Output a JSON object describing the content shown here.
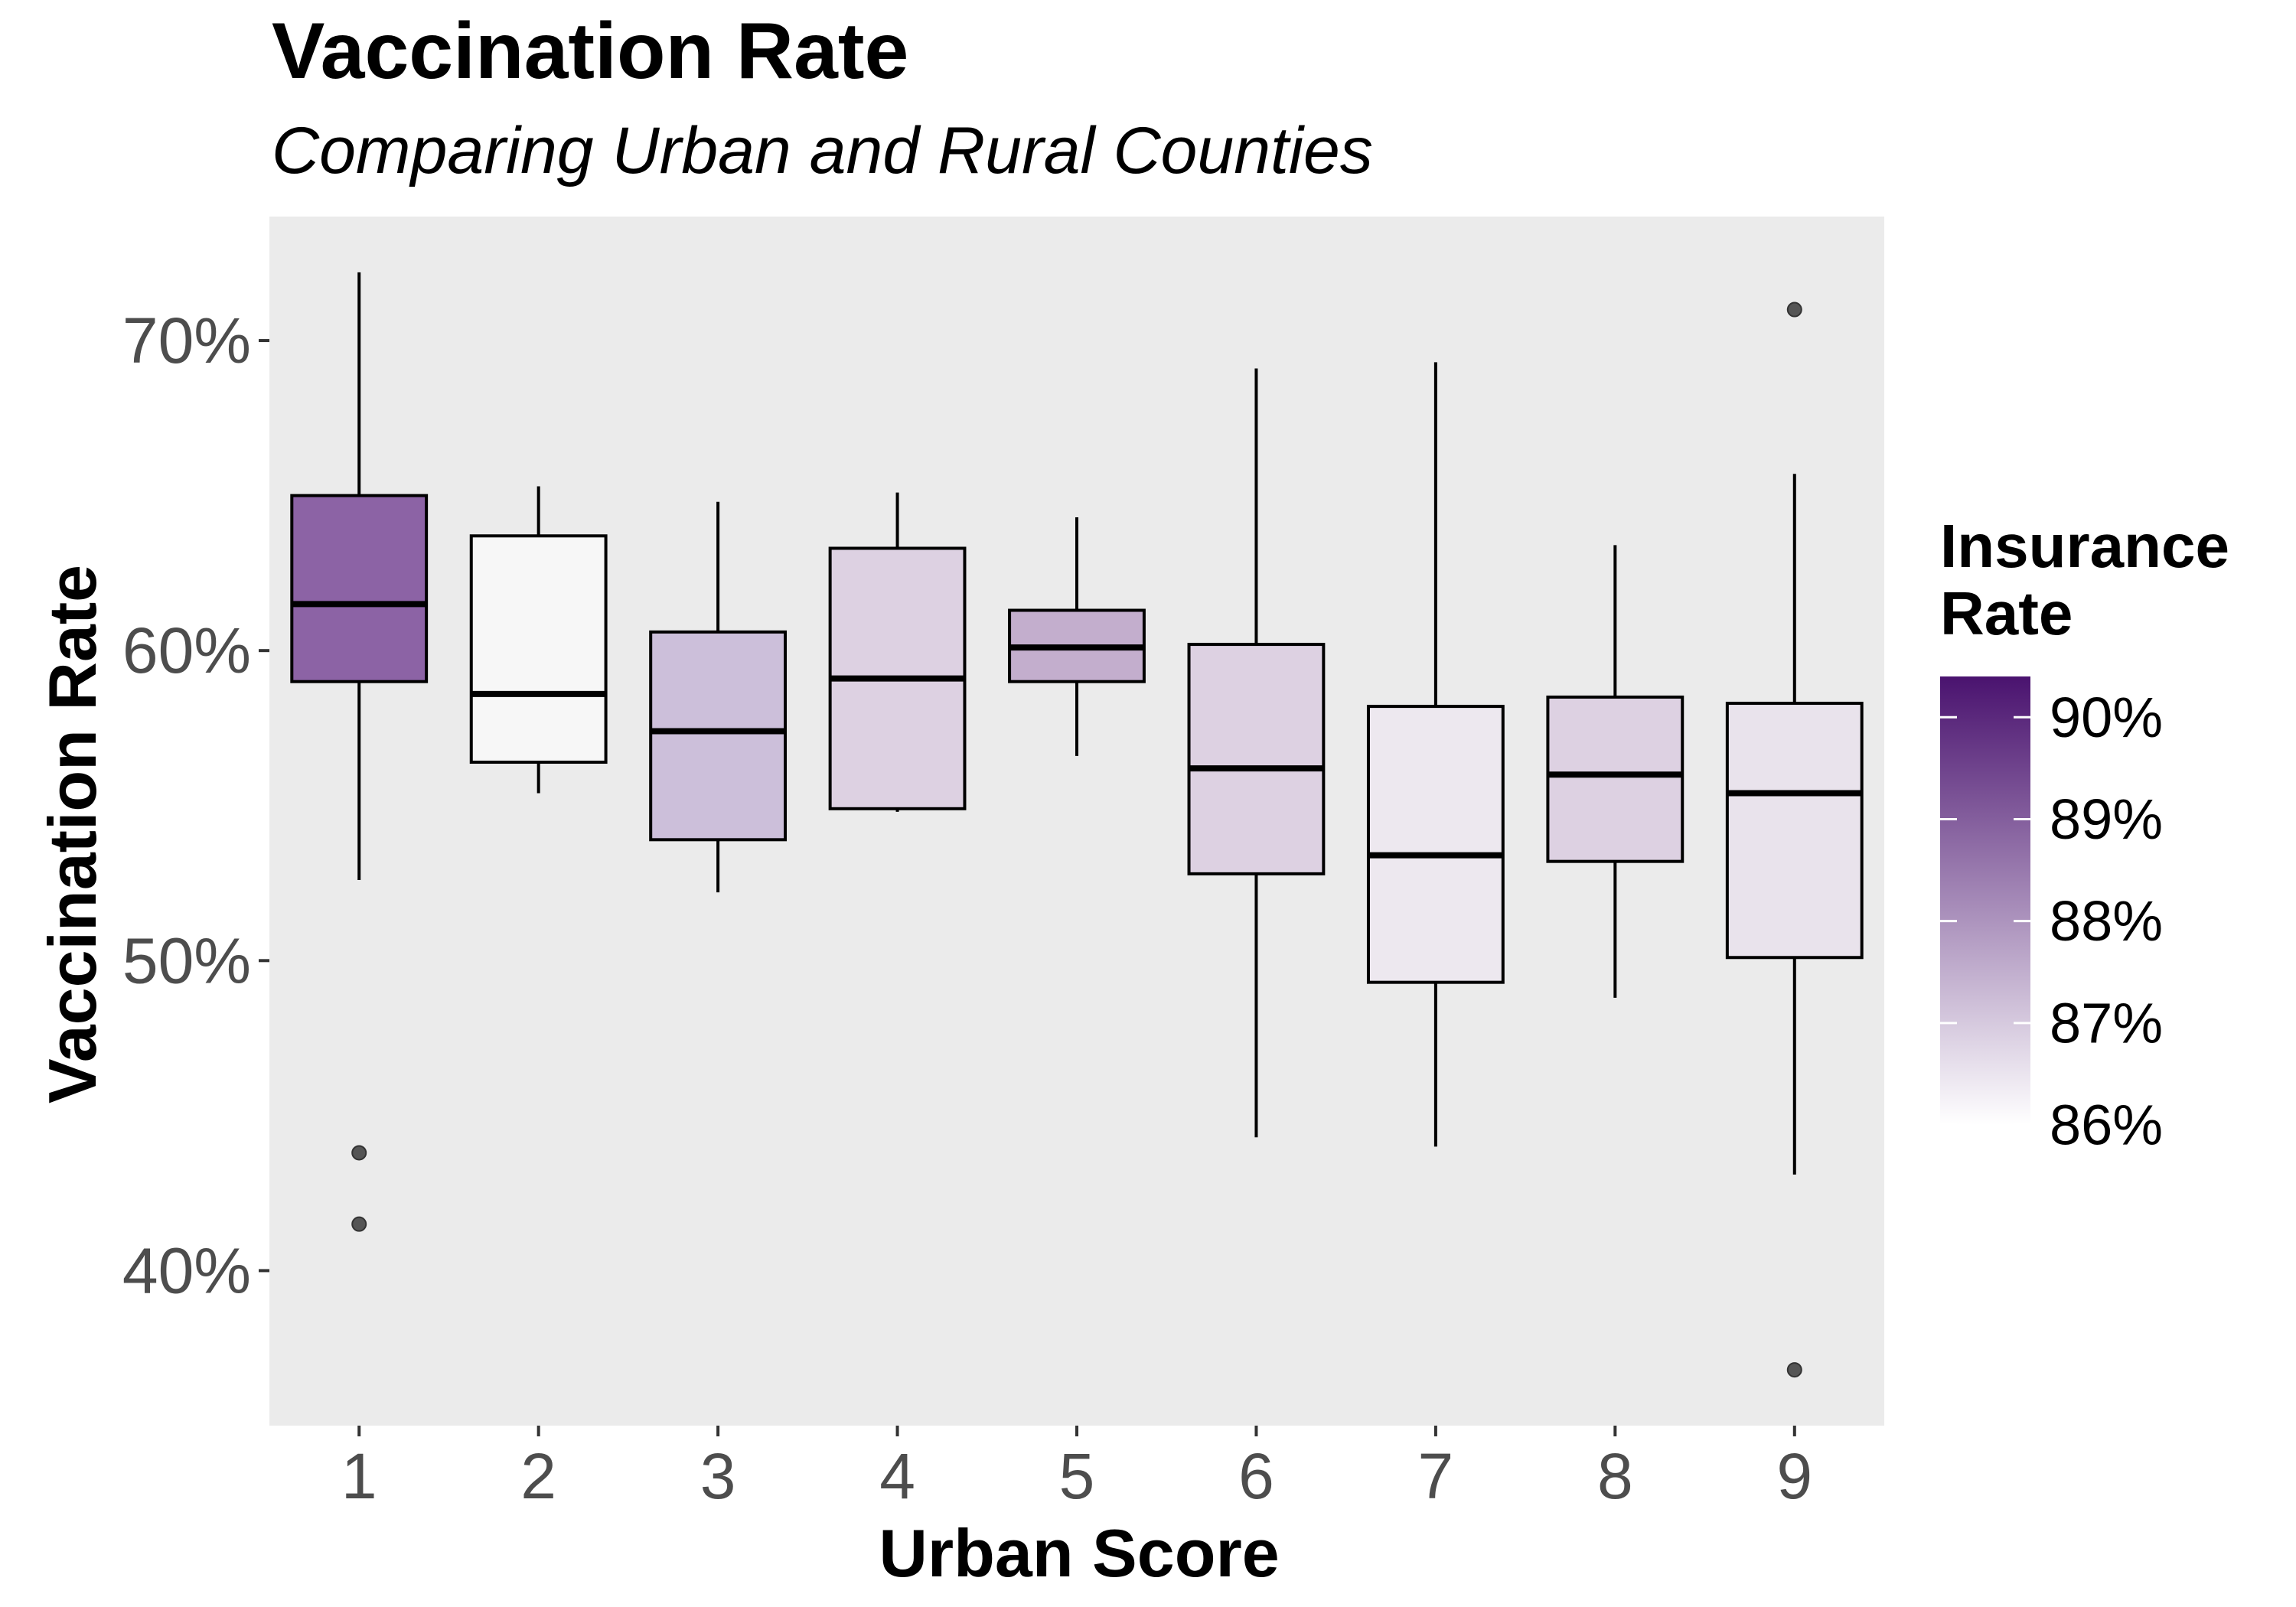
{
  "chart_data": {
    "type": "boxplot",
    "title": "Vaccination Rate",
    "subtitle": "Comparing Urban and Rural Counties",
    "xlabel": "Urban Score",
    "ylabel": "Vaccination Rate",
    "ylim": [
      0.35,
      0.74
    ],
    "grid": false,
    "background": "#ebebeb",
    "y_ticks": [
      {
        "value": 0.4,
        "label": "40%"
      },
      {
        "value": 0.5,
        "label": "50%"
      },
      {
        "value": 0.6,
        "label": "60%"
      },
      {
        "value": 0.7,
        "label": "70%"
      }
    ],
    "categories": [
      "1",
      "2",
      "3",
      "4",
      "5",
      "6",
      "7",
      "8",
      "9"
    ],
    "boxes": [
      {
        "category": "1",
        "whisker_low": 0.526,
        "q1": 0.59,
        "median": 0.615,
        "q3": 0.65,
        "whisker_high": 0.722,
        "outliers": [
          0.438,
          0.415
        ],
        "fill": "#8c63a5"
      },
      {
        "category": "2",
        "whisker_low": 0.554,
        "q1": 0.564,
        "median": 0.586,
        "q3": 0.637,
        "whisker_high": 0.653,
        "outliers": [],
        "fill": "#f7f7f7"
      },
      {
        "category": "3",
        "whisker_low": 0.522,
        "q1": 0.539,
        "median": 0.574,
        "q3": 0.606,
        "whisker_high": 0.648,
        "outliers": [],
        "fill": "#ccbfda"
      },
      {
        "category": "4",
        "whisker_low": 0.548,
        "q1": 0.549,
        "median": 0.591,
        "q3": 0.633,
        "whisker_high": 0.651,
        "outliers": [],
        "fill": "#ddd1e2"
      },
      {
        "category": "5",
        "whisker_low": 0.566,
        "q1": 0.59,
        "median": 0.601,
        "q3": 0.613,
        "whisker_high": 0.643,
        "outliers": [],
        "fill": "#c3aecd"
      },
      {
        "category": "6",
        "whisker_low": 0.443,
        "q1": 0.528,
        "median": 0.562,
        "q3": 0.602,
        "whisker_high": 0.691,
        "outliers": [],
        "fill": "#ddd1e2"
      },
      {
        "category": "7",
        "whisker_low": 0.44,
        "q1": 0.493,
        "median": 0.534,
        "q3": 0.582,
        "whisker_high": 0.693,
        "outliers": [],
        "fill": "#ede8ef"
      },
      {
        "category": "8",
        "whisker_low": 0.488,
        "q1": 0.532,
        "median": 0.56,
        "q3": 0.585,
        "whisker_high": 0.634,
        "outliers": [],
        "fill": "#ddd1e2"
      },
      {
        "category": "9",
        "whisker_low": 0.431,
        "q1": 0.501,
        "median": 0.554,
        "q3": 0.583,
        "whisker_high": 0.657,
        "outliers": [
          0.71,
          0.368
        ],
        "fill": "#e9e3ec"
      }
    ],
    "legend": {
      "title_lines": [
        "Insurance",
        "Rate"
      ],
      "placement": "right",
      "range": [
        0.86,
        0.904
      ],
      "colors": [
        "#ffffff",
        "#4a136f"
      ],
      "ticks": [
        {
          "value": 0.86,
          "label": "86%"
        },
        {
          "value": 0.87,
          "label": "87%"
        },
        {
          "value": 0.88,
          "label": "88%"
        },
        {
          "value": 0.89,
          "label": "89%"
        },
        {
          "value": 0.9,
          "label": "90%"
        }
      ]
    }
  }
}
